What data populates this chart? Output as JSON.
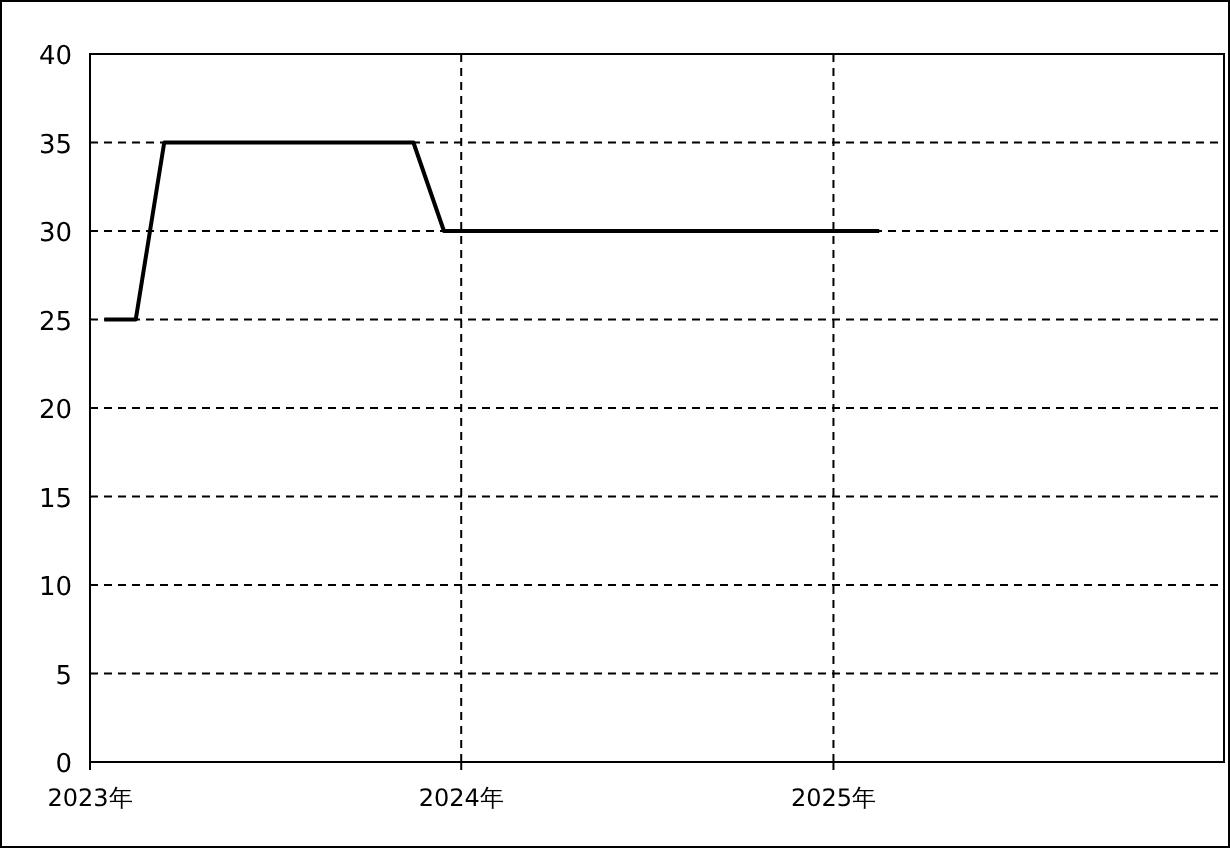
{
  "chart_data": {
    "type": "line",
    "x": [
      "2023-01-15",
      "2023-02-15",
      "2023-03-15",
      "2023-11-15",
      "2023-12-15",
      "2025-02-15"
    ],
    "series": [
      {
        "color": "#000000",
        "values": [
          25,
          25,
          35,
          35,
          30,
          30
        ]
      }
    ],
    "xlim": [
      "2023-01-01",
      "2026-01-20"
    ],
    "xticks": [
      {
        "value": "2023-01-01",
        "label": "2023年"
      },
      {
        "value": "2024-01-01",
        "label": "2024年"
      },
      {
        "value": "2025-01-01",
        "label": "2025年"
      }
    ],
    "ylim": [
      0,
      40
    ],
    "yticks": [
      0,
      5,
      10,
      15,
      20,
      25,
      30,
      35,
      40
    ],
    "grid": true,
    "line_style": "solid",
    "marker": "none"
  }
}
